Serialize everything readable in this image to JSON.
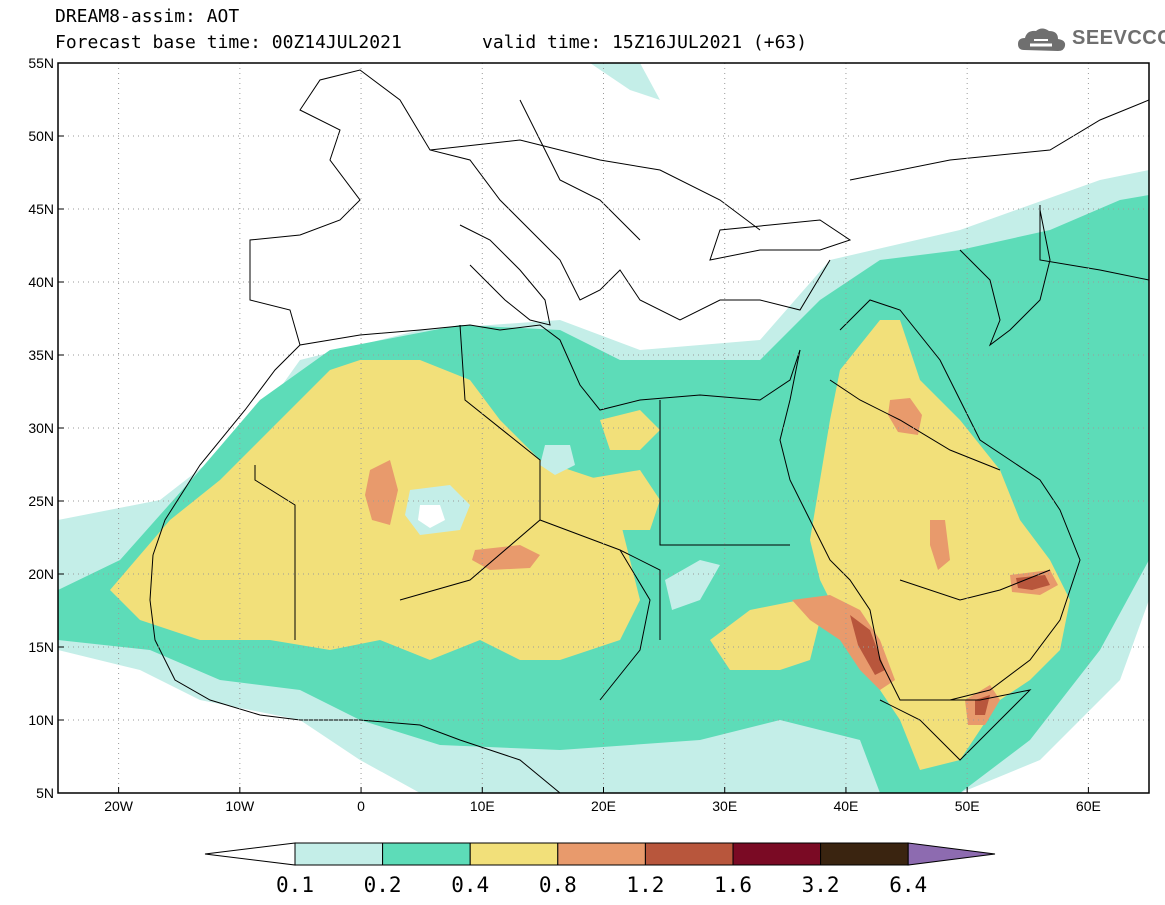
{
  "header": {
    "title_line1": "DREAM8-assim: AOT",
    "title_line2": "Forecast base time: 00Z14JUL2021",
    "valid_time": "valid time: 15Z16JUL2021 (+63)",
    "logo_text": "SEEVCCC"
  },
  "map": {
    "lon_range": [
      -25,
      65
    ],
    "lat_range": [
      5,
      55
    ],
    "lon_ticks": [
      "20W",
      "10W",
      "0",
      "10E",
      "20E",
      "30E",
      "40E",
      "50E",
      "60E"
    ],
    "lon_tick_values": [
      -20,
      -10,
      0,
      10,
      20,
      30,
      40,
      50,
      60
    ],
    "lat_ticks": [
      "55N",
      "50N",
      "45N",
      "40N",
      "35N",
      "30N",
      "25N",
      "20N",
      "15N",
      "10N",
      "5N"
    ],
    "lat_tick_values": [
      55,
      50,
      45,
      40,
      35,
      30,
      25,
      20,
      15,
      10,
      5
    ],
    "gridlines": "dotted"
  },
  "legend": {
    "levels": [
      "0.1",
      "0.2",
      "0.4",
      "0.8",
      "1.2",
      "1.6",
      "3.2",
      "6.4"
    ],
    "colors": [
      "#c4eee8",
      "#5ddcb8",
      "#f2e07a",
      "#e89a6c",
      "#b8563c",
      "#7a0a24",
      "#3a2410",
      "#8d6bb0"
    ],
    "below_color": "#ffffff"
  }
}
